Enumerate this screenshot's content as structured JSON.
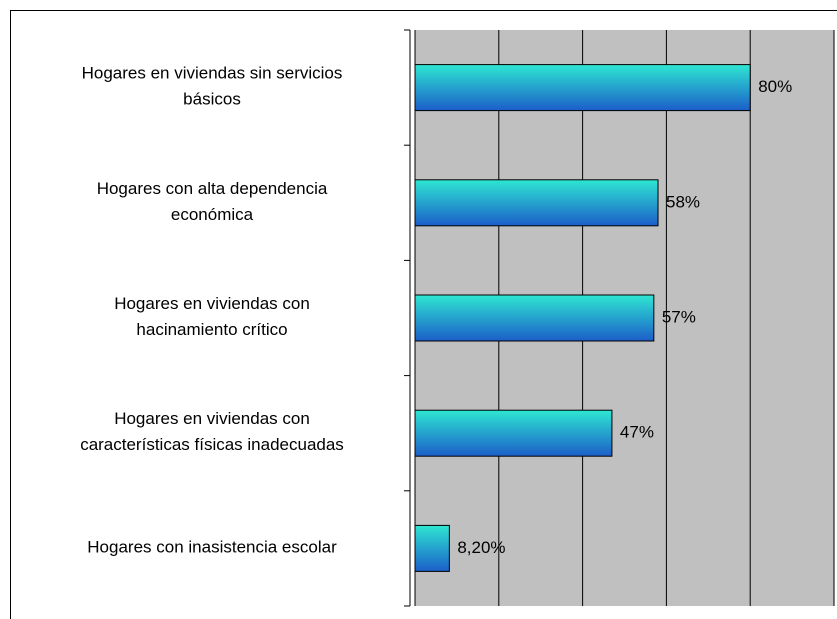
{
  "chart_data": {
    "type": "barh",
    "categories": [
      "Hogares en viviendas sin servicios\nbásicos",
      "Hogares con alta dependencia\neconómica",
      "Hogares en viviendas con\nhacinamiento crítico",
      "Hogares en viviendas con\ncaracterísticas físicas inadecuadas",
      "Hogares con inasistencia escolar"
    ],
    "values": [
      80,
      58,
      57,
      47,
      8.2
    ],
    "value_labels": [
      "80%",
      "58%",
      "57%",
      "47%",
      "8,20%"
    ],
    "color_top": "#2ee6d2",
    "color_bottom": "#1c5ec9",
    "xlim": [
      0,
      100
    ],
    "xticks": [
      0,
      20,
      40,
      60,
      80,
      100
    ],
    "grid": true
  }
}
